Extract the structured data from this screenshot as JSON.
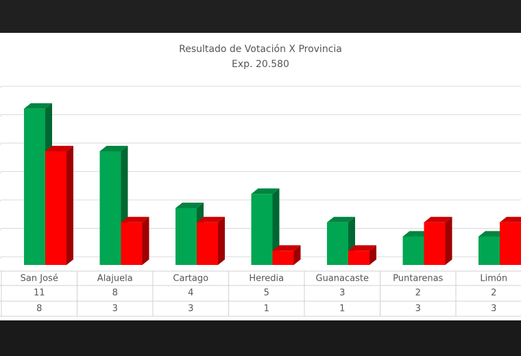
{
  "chart_data": {
    "type": "bar3d",
    "title": "Resultado  de  Votación  X  Provincia",
    "subtitle": "Exp. 20.580",
    "categories": [
      "San José",
      "Alajuela",
      "Cartago",
      "Heredia",
      "Guanacaste",
      "Puntarenas",
      "Limón"
    ],
    "series": [
      {
        "color": "#00a651",
        "values": [
          11,
          8,
          4,
          5,
          3,
          2,
          2
        ]
      },
      {
        "color": "#ff0000",
        "values": [
          8,
          3,
          3,
          1,
          1,
          3,
          3
        ]
      }
    ],
    "ylim": [
      0,
      12
    ],
    "yticks": [
      0,
      2,
      4,
      6,
      8,
      10,
      12
    ],
    "grid": true
  }
}
